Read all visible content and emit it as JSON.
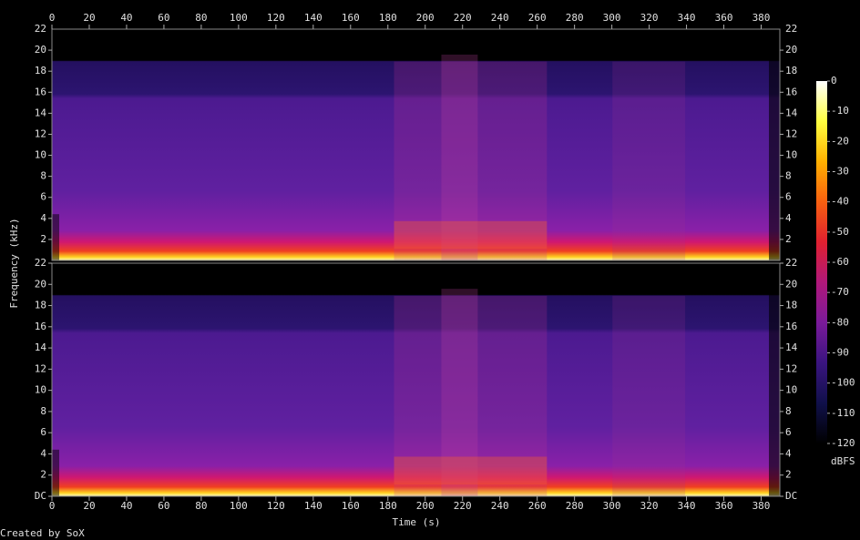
{
  "chart_data": {
    "type": "spectrogram",
    "xlabel": "Time (s)",
    "ylabel": "Frequency (kHz)",
    "xlim": [
      0,
      390
    ],
    "xticks": [
      0,
      20,
      40,
      60,
      80,
      100,
      120,
      140,
      160,
      180,
      200,
      220,
      240,
      260,
      280,
      300,
      320,
      340,
      360,
      380
    ],
    "channels": [
      {
        "ylim": [
          0,
          22
        ],
        "yticks": [
          2,
          4,
          6,
          8,
          10,
          12,
          14,
          16,
          18,
          20
        ]
      },
      {
        "ylim": [
          0,
          22
        ],
        "yticks": [
          {
            "value": 0,
            "label": "DC"
          },
          2,
          4,
          6,
          8,
          10,
          12,
          14,
          16,
          18,
          20,
          22
        ]
      }
    ],
    "top_label": 22,
    "colorbar": {
      "label": "dBFS",
      "clim": [
        -120,
        0
      ],
      "ticks": [
        0,
        -10,
        -20,
        -30,
        -40,
        -50,
        -60,
        -70,
        -80,
        -90,
        -100,
        -110,
        -120
      ],
      "colormap": [
        "#000000",
        "#10104a",
        "#3a1480",
        "#7a1a9a",
        "#b0187a",
        "#e02030",
        "#f86010",
        "#ffb000",
        "#ffff40",
        "#ffffff"
      ]
    },
    "footer": "Created by SoX"
  }
}
